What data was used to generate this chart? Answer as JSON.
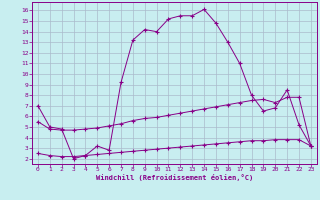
{
  "background_color": "#c8eef0",
  "grid_color": "#aabbcc",
  "line_color": "#880088",
  "xlabel": "Windchill (Refroidissement éolien,°C)",
  "x_ticks": [
    0,
    1,
    2,
    3,
    4,
    5,
    6,
    7,
    8,
    9,
    10,
    11,
    12,
    13,
    14,
    15,
    16,
    17,
    18,
    19,
    20,
    21,
    22,
    23
  ],
  "y_ticks": [
    2,
    3,
    4,
    5,
    6,
    7,
    8,
    9,
    10,
    11,
    12,
    13,
    14,
    15,
    16
  ],
  "ylim": [
    1.5,
    16.8
  ],
  "xlim": [
    -0.5,
    23.5
  ],
  "curve1": {
    "x": [
      0,
      1,
      2,
      3,
      4,
      5,
      6,
      7,
      8,
      9,
      10,
      11,
      12,
      13,
      14,
      15,
      16,
      17,
      18,
      19,
      20,
      21,
      22,
      23
    ],
    "y": [
      7.0,
      5.0,
      4.8,
      2.0,
      2.3,
      3.2,
      2.8,
      9.2,
      13.2,
      14.2,
      14.0,
      15.2,
      15.5,
      15.5,
      16.1,
      14.8,
      13.0,
      11.0,
      8.0,
      6.5,
      6.8,
      8.5,
      5.2,
      3.2
    ]
  },
  "curve2": {
    "x": [
      0,
      1,
      2,
      3,
      4,
      5,
      6,
      7,
      8,
      9,
      10,
      11,
      12,
      13,
      14,
      15,
      16,
      17,
      18,
      19,
      20,
      21,
      22,
      23
    ],
    "y": [
      5.5,
      4.8,
      4.7,
      4.7,
      4.8,
      4.9,
      5.1,
      5.3,
      5.6,
      5.8,
      5.9,
      6.1,
      6.3,
      6.5,
      6.7,
      6.9,
      7.1,
      7.3,
      7.5,
      7.6,
      7.3,
      7.8,
      7.8,
      3.2
    ]
  },
  "curve3": {
    "x": [
      0,
      1,
      2,
      3,
      4,
      5,
      6,
      7,
      8,
      9,
      10,
      11,
      12,
      13,
      14,
      15,
      16,
      17,
      18,
      19,
      20,
      21,
      22,
      23
    ],
    "y": [
      2.5,
      2.3,
      2.2,
      2.2,
      2.3,
      2.4,
      2.5,
      2.6,
      2.7,
      2.8,
      2.9,
      3.0,
      3.1,
      3.2,
      3.3,
      3.4,
      3.5,
      3.6,
      3.7,
      3.7,
      3.8,
      3.8,
      3.8,
      3.2
    ]
  }
}
